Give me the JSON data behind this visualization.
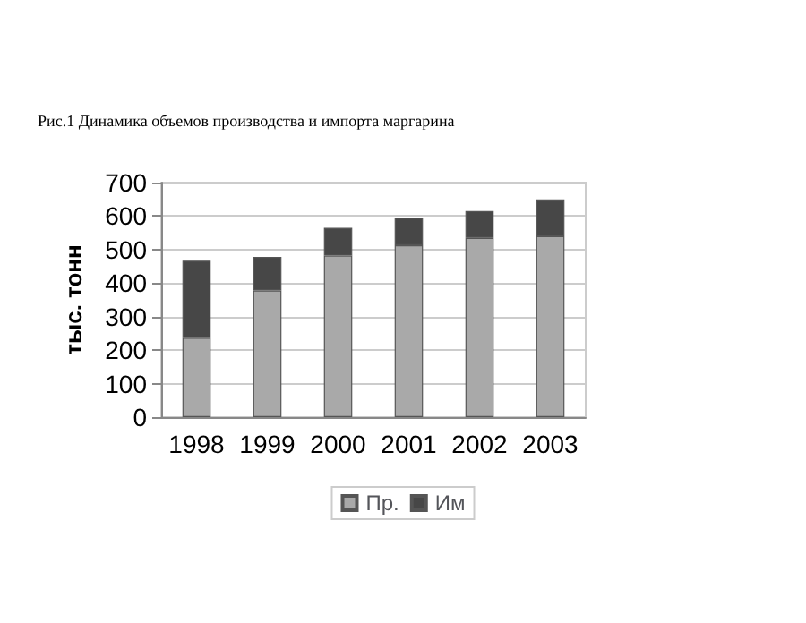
{
  "chart_data": {
    "type": "bar",
    "title": "Рис.1 Динамика объемов производства и импорта маргарина",
    "ylabel": "тыс. тонн",
    "categories": [
      "1998",
      "1999",
      "2000",
      "2001",
      "2002",
      "2003"
    ],
    "stacked": true,
    "series": [
      {
        "name": "Пр.",
        "color": "#a9a9a9",
        "values": [
          237,
          378,
          482,
          513,
          535,
          540
        ]
      },
      {
        "name": "Им",
        "color": "#474747",
        "values": [
          230,
          100,
          83,
          82,
          80,
          110
        ]
      }
    ],
    "ylim": [
      0,
      700
    ],
    "yticks": [
      0,
      100,
      200,
      300,
      400,
      500,
      600,
      700
    ],
    "grid": "y",
    "legend": "bottom"
  }
}
